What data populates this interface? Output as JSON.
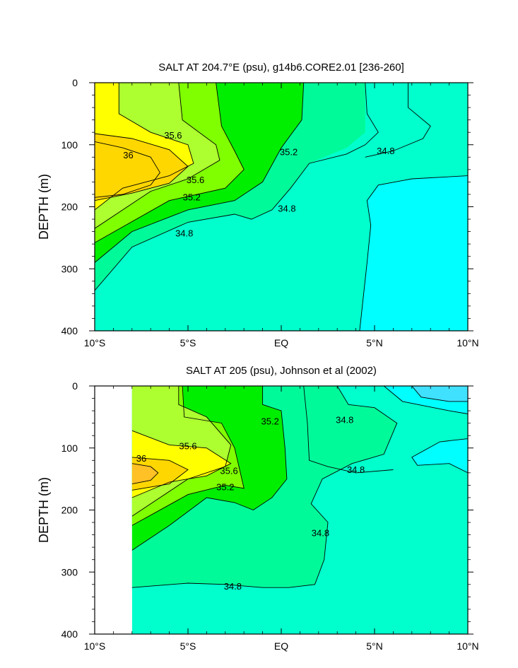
{
  "chart_data": [
    {
      "type": "contour",
      "title": "SALT AT 204.7°E (psu), g14b6.CORE2.01 [236-260]",
      "ylabel": "DEPTH (m)",
      "xlabel": "",
      "x_ticks": [
        "10°S",
        "5°S",
        "EQ",
        "5°N",
        "10°N"
      ],
      "y_ticks": [
        "0",
        "100",
        "200",
        "300",
        "400"
      ],
      "xlim": [
        -10,
        10
      ],
      "ylim": [
        400,
        0
      ],
      "y_reversed": true,
      "levels": [
        34.6,
        34.8,
        35.0,
        35.2,
        35.4,
        35.6,
        35.8,
        36.0
      ],
      "data_xmin": -10,
      "contour_labels": [
        {
          "text": "35.6",
          "x": -5.8,
          "y": 90
        },
        {
          "text": "36",
          "x": -8.2,
          "y": 122
        },
        {
          "text": "35.6",
          "x": -4.6,
          "y": 162
        },
        {
          "text": "35.2",
          "x": -4.8,
          "y": 190
        },
        {
          "text": "34.8",
          "x": -5.2,
          "y": 248
        },
        {
          "text": "35.2",
          "x": 0.4,
          "y": 117
        },
        {
          "text": "34.8",
          "x": 0.3,
          "y": 208
        },
        {
          "text": "34.8",
          "x": 5.6,
          "y": 115
        }
      ]
    },
    {
      "type": "contour",
      "title": "SALT AT 205 (psu), Johnson et al (2002)",
      "ylabel": "DEPTH (m)",
      "xlabel": "",
      "x_ticks": [
        "10°S",
        "5°S",
        "EQ",
        "5°N",
        "10°N"
      ],
      "y_ticks": [
        "0",
        "100",
        "200",
        "300",
        "400"
      ],
      "xlim": [
        -10,
        10
      ],
      "ylim": [
        400,
        0
      ],
      "y_reversed": true,
      "levels": [
        34.6,
        34.8,
        35.0,
        35.2,
        35.4,
        35.6,
        35.8,
        36.0
      ],
      "data_xmin": -8,
      "contour_labels": [
        {
          "text": "35.6",
          "x": -5.0,
          "y": 102
        },
        {
          "text": "36",
          "x": -7.5,
          "y": 122
        },
        {
          "text": "35.6",
          "x": -2.8,
          "y": 142
        },
        {
          "text": "35.2",
          "x": -3.0,
          "y": 168
        },
        {
          "text": "35.2",
          "x": -0.6,
          "y": 62
        },
        {
          "text": "34.8",
          "x": 3.4,
          "y": 60
        },
        {
          "text": "34.8",
          "x": 4.0,
          "y": 140
        },
        {
          "text": "34.8",
          "x": 2.1,
          "y": 242
        },
        {
          "text": "34.8",
          "x": -2.6,
          "y": 328
        }
      ]
    }
  ],
  "colors": {
    "lt34.6": "#00ffff",
    "34.6-34.8": "#00ffcc",
    "34.8-35.0": "#00fa9a",
    "35.0-35.2": "#00ee00",
    "35.2-35.4": "#7fff00",
    "35.4-35.6": "#adff2f",
    "35.6-35.8": "#ffff00",
    "35.8-36.0": "#ffd700",
    "ge36.0": "#ffc125",
    "top_right_blob": "#40e0ff"
  }
}
